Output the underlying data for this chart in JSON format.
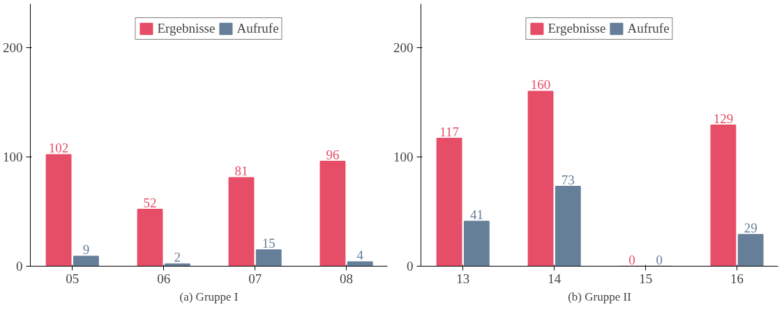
{
  "chart_data": [
    {
      "type": "bar",
      "title": "(a) Gruppe I",
      "categories": [
        "05",
        "06",
        "07",
        "08"
      ],
      "series": [
        {
          "name": "Ergebnisse",
          "color": "#e64d67",
          "values": [
            102,
            52,
            81,
            96
          ]
        },
        {
          "name": "Aufrufe",
          "color": "#657f99",
          "values": [
            9,
            2,
            15,
            4
          ]
        }
      ],
      "ylim": [
        0,
        240
      ],
      "yticks": [
        0,
        100,
        200
      ],
      "grid": false,
      "legend": "top",
      "data_labels": true
    },
    {
      "type": "bar",
      "title": "(b) Gruppe II",
      "categories": [
        "13",
        "14",
        "15",
        "16"
      ],
      "series": [
        {
          "name": "Ergebnisse",
          "color": "#e64d67",
          "values": [
            117,
            160,
            0,
            129
          ]
        },
        {
          "name": "Aufrufe",
          "color": "#657f99",
          "values": [
            41,
            73,
            0,
            29
          ]
        }
      ],
      "ylim": [
        0,
        240
      ],
      "yticks": [
        0,
        100,
        200
      ],
      "grid": false,
      "legend": "top",
      "data_labels": true
    }
  ]
}
